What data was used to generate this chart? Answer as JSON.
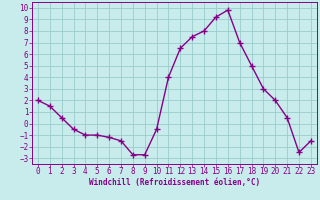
{
  "x": [
    0,
    1,
    2,
    3,
    4,
    5,
    6,
    7,
    8,
    9,
    10,
    11,
    12,
    13,
    14,
    15,
    16,
    17,
    18,
    19,
    20,
    21,
    22,
    23
  ],
  "y": [
    2,
    1.5,
    0.5,
    -0.5,
    -1,
    -1,
    -1.2,
    -1.5,
    -2.7,
    -2.7,
    -0.5,
    4,
    6.5,
    7.5,
    8,
    9.2,
    9.8,
    7,
    5,
    3,
    2,
    0.5,
    -2.5,
    -1.5
  ],
  "line_color": "#880088",
  "marker": "+",
  "marker_size": 4,
  "marker_lw": 1.0,
  "line_width": 1.0,
  "bg_color": "#c8ecec",
  "grid_color": "#99cccc",
  "xlabel": "Windchill (Refroidissement éolien,°C)",
  "xlim": [
    -0.5,
    23.5
  ],
  "ylim": [
    -3.5,
    10.5
  ],
  "yticks": [
    -3,
    -2,
    -1,
    0,
    1,
    2,
    3,
    4,
    5,
    6,
    7,
    8,
    9,
    10
  ],
  "xticks": [
    0,
    1,
    2,
    3,
    4,
    5,
    6,
    7,
    8,
    9,
    10,
    11,
    12,
    13,
    14,
    15,
    16,
    17,
    18,
    19,
    20,
    21,
    22,
    23
  ],
  "tick_color": "#880088",
  "label_color": "#880088",
  "spine_color": "#880088",
  "tick_fontsize": 5.5,
  "xlabel_fontsize": 5.5
}
